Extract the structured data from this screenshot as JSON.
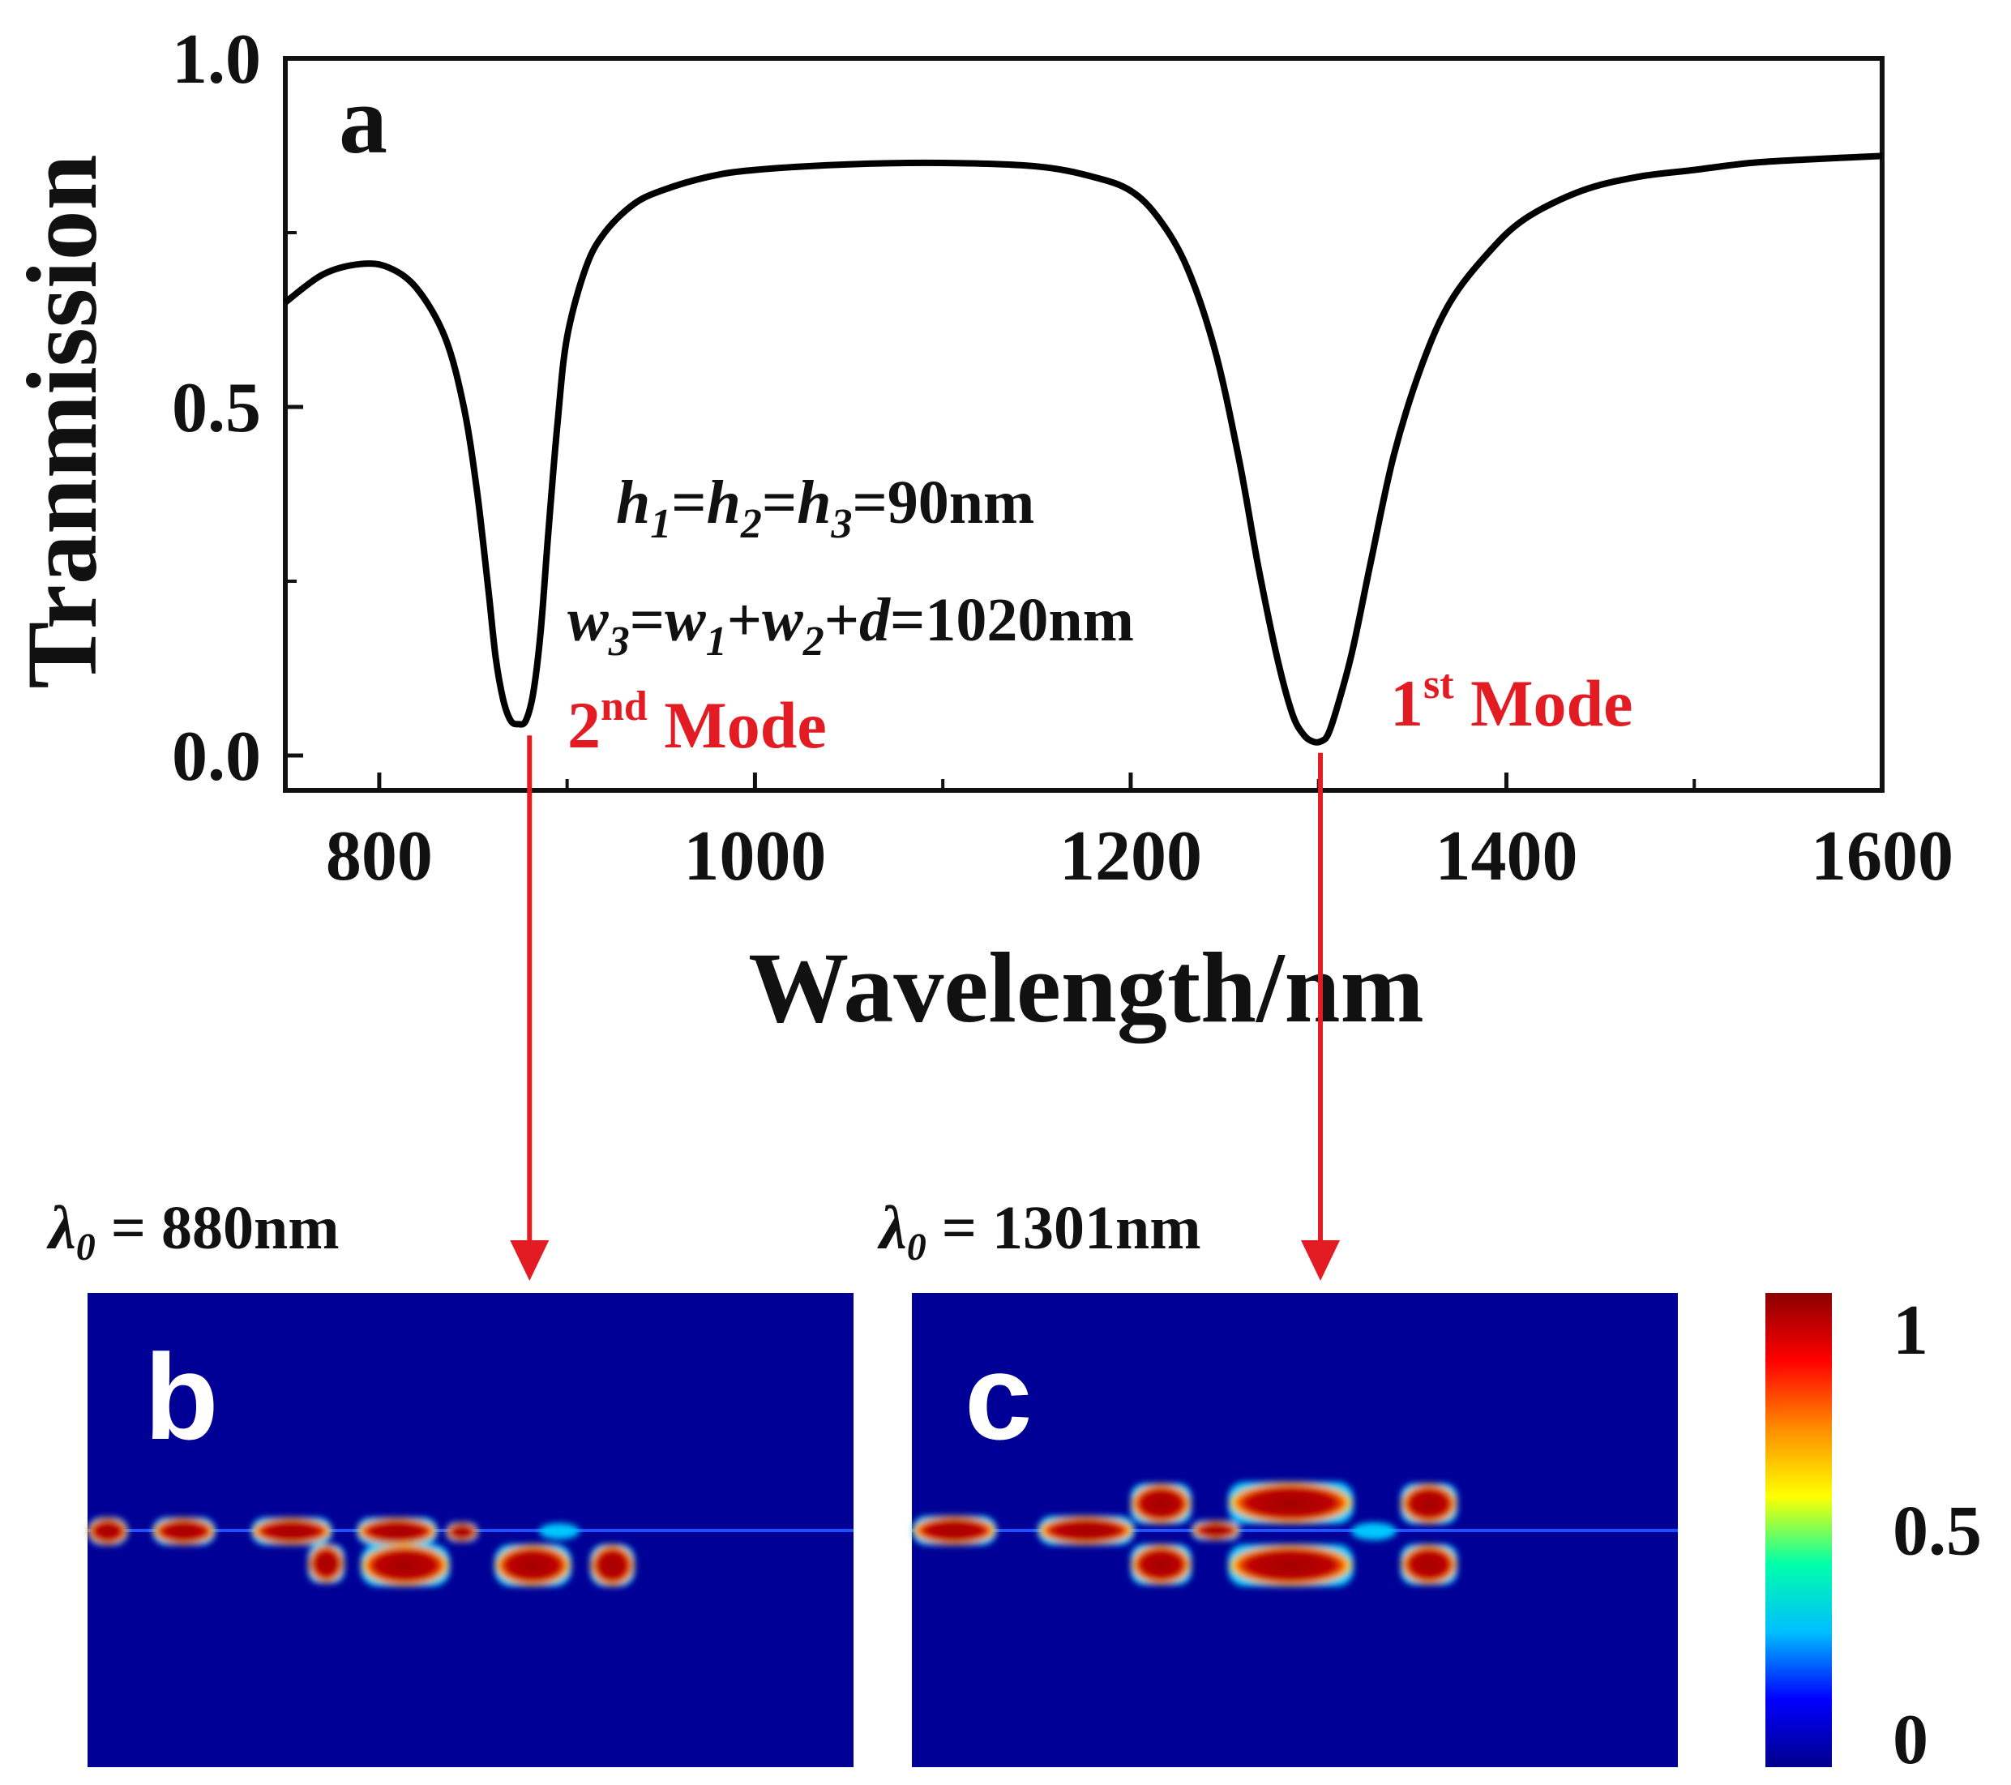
{
  "chart_data": {
    "type": "line",
    "panel_label": "a",
    "xlabel": "Wavelength/nm",
    "ylabel": "Tranmission",
    "xlim": [
      750,
      1600
    ],
    "ylim": [
      -0.05,
      1.0
    ],
    "xticks": [
      800,
      1000,
      1200,
      1400,
      1600
    ],
    "xtick_labels": [
      "800",
      "1000",
      "1200",
      "1400",
      "1600"
    ],
    "yticks": [
      0.0,
      0.5,
      1.0
    ],
    "ytick_labels": [
      "0.0",
      "0.5",
      "1.0"
    ],
    "grid": false,
    "series": [
      {
        "name": "Transmission",
        "color": "#000000",
        "x": [
          750,
          770,
          790,
          805,
          820,
          835,
          845,
          852,
          858,
          862,
          866,
          870,
          874,
          878,
          882,
          886,
          890,
          895,
          900,
          910,
          920,
          935,
          950,
          975,
          1000,
          1050,
          1100,
          1150,
          1180,
          1200,
          1215,
          1230,
          1245,
          1258,
          1268,
          1278,
          1286,
          1292,
          1297,
          1301,
          1305,
          1310,
          1318,
          1328,
          1340,
          1355,
          1370,
          1390,
          1410,
          1440,
          1470,
          1500,
          1530,
          1560,
          1600
        ],
        "y": [
          0.65,
          0.69,
          0.705,
          0.7,
          0.67,
          0.6,
          0.5,
          0.38,
          0.24,
          0.14,
          0.08,
          0.05,
          0.045,
          0.05,
          0.09,
          0.18,
          0.32,
          0.48,
          0.6,
          0.7,
          0.75,
          0.79,
          0.81,
          0.83,
          0.84,
          0.848,
          0.85,
          0.845,
          0.83,
          0.81,
          0.77,
          0.7,
          0.58,
          0.42,
          0.27,
          0.14,
          0.06,
          0.03,
          0.02,
          0.02,
          0.03,
          0.07,
          0.15,
          0.28,
          0.43,
          0.56,
          0.65,
          0.72,
          0.77,
          0.81,
          0.83,
          0.84,
          0.85,
          0.855,
          0.86
        ]
      }
    ],
    "annotations": {
      "line1": {
        "h1": "h",
        "s1": "1",
        "eq1": "=",
        "h2": "h",
        "s2": "2",
        "eq2": "=",
        "h3": "h",
        "s3": "3",
        "tail": "=90nm"
      },
      "line2": {
        "w3": "w",
        "s3": "3",
        "eq": "=",
        "w1": "w",
        "s1": "1",
        "plus1": "+",
        "w2": "w",
        "s2": "2",
        "plus2": "+",
        "d": "d",
        "tail": "=1020nm"
      },
      "mode2": {
        "num": "2",
        "sup": "nd",
        "word": " Mode"
      },
      "mode1": {
        "num": "1",
        "sup": "st",
        "word": " Mode"
      }
    },
    "modes": [
      {
        "label": "2nd Mode",
        "wavelength_nm": 880,
        "dip_transmission": 0.045
      },
      {
        "label": "1st Mode",
        "wavelength_nm": 1301,
        "dip_transmission": 0.02
      }
    ],
    "field_maps": [
      {
        "panel": "b",
        "lambda_symbol": "λ",
        "lambda_sub": "0",
        "lambda_eq": " = 880nm",
        "wavelength_nm": 880
      },
      {
        "panel": "c",
        "lambda_symbol": "λ",
        "lambda_sub": "0",
        "lambda_eq": " = 1301nm",
        "wavelength_nm": 1301
      }
    ],
    "colorbar": {
      "min": 0,
      "max": 1,
      "tick_values": [
        0,
        0.5,
        1
      ],
      "tick_labels": [
        "0",
        "0.5",
        "1"
      ],
      "colors": [
        "#00008b",
        "#0000ff",
        "#00bfff",
        "#00ffaa",
        "#ffff00",
        "#ff8c00",
        "#ff0000",
        "#8b0000"
      ]
    },
    "colors": {
      "arrow": "#e31b23",
      "mode_text": "#e31b23",
      "field_bg": "#000096",
      "field_hot": "#a00000"
    }
  }
}
